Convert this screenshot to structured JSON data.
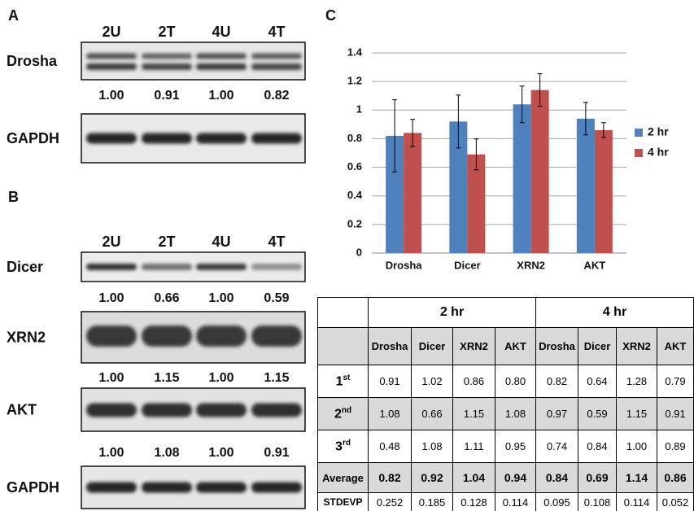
{
  "panel_a": {
    "label": "A",
    "lanes": [
      "2U",
      "2T",
      "4U",
      "4T"
    ],
    "blots": [
      {
        "name": "Drosha",
        "quantification": [
          "1.00",
          "0.91",
          "1.00",
          "0.82"
        ]
      },
      {
        "name": "GAPDH"
      }
    ]
  },
  "panel_b": {
    "label": "B",
    "lanes": [
      "2U",
      "2T",
      "4U",
      "4T"
    ],
    "blots": [
      {
        "name": "Dicer",
        "quantification": [
          "1.00",
          "0.66",
          "1.00",
          "0.59"
        ]
      },
      {
        "name": "XRN2",
        "quantification": [
          "1.00",
          "1.15",
          "1.00",
          "1.15"
        ]
      },
      {
        "name": "AKT",
        "quantification": [
          "1.00",
          "1.08",
          "1.00",
          "0.91"
        ]
      },
      {
        "name": "GAPDH"
      }
    ]
  },
  "chart_data": {
    "type": "bar",
    "panel_label": "C",
    "categories": [
      "Drosha",
      "Dicer",
      "XRN2",
      "AKT"
    ],
    "series": [
      {
        "name": "2 hr",
        "color": "#4f81bd",
        "values": [
          0.82,
          0.92,
          1.04,
          0.94
        ],
        "errors": [
          0.252,
          0.185,
          0.128,
          0.114
        ]
      },
      {
        "name": "4 hr",
        "color": "#c0504d",
        "values": [
          0.84,
          0.69,
          1.14,
          0.86
        ],
        "errors": [
          0.095,
          0.108,
          0.114,
          0.052
        ]
      }
    ],
    "ylim": [
      0,
      1.4
    ],
    "yticks": [
      0,
      0.2,
      0.4,
      0.6,
      0.8,
      1,
      1.2,
      1.4
    ],
    "grid": true,
    "legend": "right"
  },
  "table": {
    "groups": [
      "2 hr",
      "4 hr"
    ],
    "columns": [
      "Drosha",
      "Dicer",
      "XRN2",
      "AKT",
      "Drosha",
      "Dicer",
      "XRN2",
      "AKT"
    ],
    "rows": [
      {
        "label": {
          "base": "1",
          "sup": "st"
        },
        "cells": [
          "0.91",
          "1.02",
          "0.86",
          "0.80",
          "0.82",
          "0.64",
          "1.28",
          "0.79"
        ]
      },
      {
        "label": {
          "base": "2",
          "sup": "nd"
        },
        "cells": [
          "1.08",
          "0.66",
          "1.15",
          "1.08",
          "0.97",
          "0.59",
          "1.15",
          "0.91"
        ]
      },
      {
        "label": {
          "base": "3",
          "sup": "rd"
        },
        "cells": [
          "0.48",
          "1.08",
          "1.11",
          "0.95",
          "0.74",
          "0.84",
          "1.00",
          "0.89"
        ]
      },
      {
        "label": "Average",
        "cells": [
          "0.82",
          "0.92",
          "1.04",
          "0.94",
          "0.84",
          "0.69",
          "1.14",
          "0.86"
        ]
      },
      {
        "label": "STDEVP",
        "cells": [
          "0.252",
          "0.185",
          "0.128",
          "0.114",
          "0.095",
          "0.108",
          "0.114",
          "0.052"
        ]
      }
    ]
  }
}
